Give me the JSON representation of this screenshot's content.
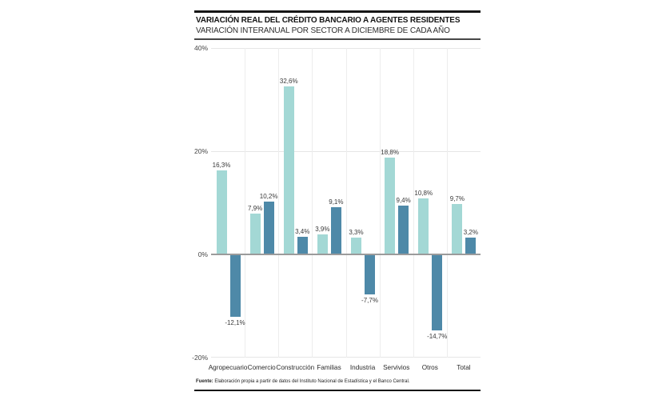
{
  "header": {
    "title": "VARIACIÓN REAL DEL CRÉDITO BANCARIO A AGENTES RESIDENTES",
    "subtitle": "VARIACIÓN INTERANUAL POR SECTOR A DICIEMBRE DE CADA AÑO"
  },
  "footer": {
    "source_label": "Fuente:",
    "source_text": " Elaboración propia a partir de datos del Instituto Nacional de Estadística y el Banco Central."
  },
  "chart_data": {
    "type": "bar",
    "title": "VARIACIÓN REAL DEL CRÉDITO BANCARIO A AGENTES RESIDENTES",
    "subtitle": "VARIACIÓN INTERANUAL POR SECTOR A DICIEMBRE DE CADA AÑO",
    "categories": [
      "Agropecuario",
      "Comercio",
      "Construcción",
      "Familias",
      "Industria",
      "Servivios",
      "Otros",
      "Total"
    ],
    "series": [
      {
        "name": "serie-clara",
        "color": "#a3d8d5",
        "values": [
          16.3,
          7.9,
          32.6,
          3.9,
          3.3,
          18.8,
          10.8,
          9.7
        ],
        "labels": [
          "16,3%",
          "7,9%",
          "32,6%",
          "3,9%",
          "3,3%",
          "18,8%",
          "10,8%",
          "9,7%"
        ]
      },
      {
        "name": "serie-oscura",
        "color": "#4e89a8",
        "values": [
          -12.1,
          10.2,
          3.4,
          9.1,
          -7.7,
          9.4,
          -14.7,
          3.2
        ],
        "labels": [
          "-12,1%",
          "10,2%",
          "3,4%",
          "9,1%",
          "-7,7%",
          "9,4%",
          "-14,7%",
          "3,2%"
        ]
      }
    ],
    "y_ticks": [
      {
        "value": 40,
        "label": "40%"
      },
      {
        "value": 20,
        "label": "20%"
      },
      {
        "value": 0,
        "label": "0%"
      },
      {
        "value": -20,
        "label": "-20%"
      }
    ],
    "ylim": [
      -20,
      40
    ],
    "xlabel": "",
    "ylabel": "",
    "grid": true,
    "legend": "none",
    "colors": {
      "light_bar": "#a3d8d5",
      "dark_bar": "#4e89a8",
      "zero_line": "#9b9b9b",
      "gridline": "#e6e6e6",
      "rule": "#161616"
    }
  }
}
